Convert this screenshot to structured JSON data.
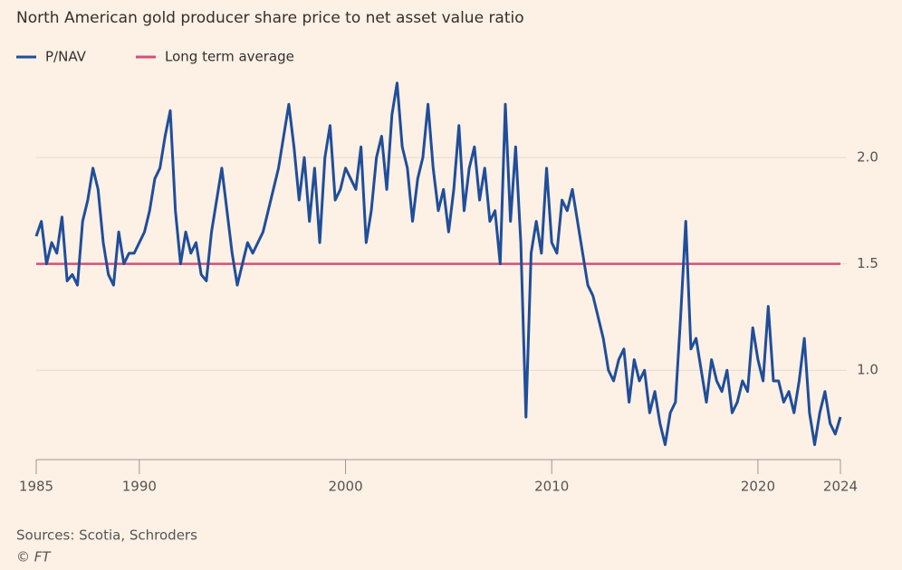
{
  "chart_data": {
    "type": "line",
    "title": "North American gold producer share price to net asset value ratio",
    "source": "Sources: Scotia, Schroders",
    "credit": "© FT",
    "x": [
      1985,
      1985.25,
      1985.5,
      1985.75,
      1986,
      1986.25,
      1986.5,
      1986.75,
      1987,
      1987.25,
      1987.5,
      1987.75,
      1988,
      1988.25,
      1988.5,
      1988.75,
      1989,
      1989.25,
      1989.5,
      1989.75,
      1990,
      1990.25,
      1990.5,
      1990.75,
      1991,
      1991.25,
      1991.5,
      1991.75,
      1992,
      1992.25,
      1992.5,
      1992.75,
      1993,
      1993.25,
      1993.5,
      1993.75,
      1994,
      1994.25,
      1994.5,
      1994.75,
      1995,
      1995.25,
      1995.5,
      1995.75,
      1996,
      1996.25,
      1996.5,
      1996.75,
      1997,
      1997.25,
      1997.5,
      1997.75,
      1998,
      1998.25,
      1998.5,
      1998.75,
      1999,
      1999.25,
      1999.5,
      1999.75,
      2000,
      2000.25,
      2000.5,
      2000.75,
      2001,
      2001.25,
      2001.5,
      2001.75,
      2002,
      2002.25,
      2002.5,
      2002.75,
      2003,
      2003.25,
      2003.5,
      2003.75,
      2004,
      2004.25,
      2004.5,
      2004.75,
      2005,
      2005.25,
      2005.5,
      2005.75,
      2006,
      2006.25,
      2006.5,
      2006.75,
      2007,
      2007.25,
      2007.5,
      2007.75,
      2008,
      2008.25,
      2008.5,
      2008.75,
      2009,
      2009.25,
      2009.5,
      2009.75,
      2010,
      2010.25,
      2010.5,
      2010.75,
      2011,
      2011.25,
      2011.5,
      2011.75,
      2012,
      2012.25,
      2012.5,
      2012.75,
      2013,
      2013.25,
      2013.5,
      2013.75,
      2014,
      2014.25,
      2014.5,
      2014.75,
      2015,
      2015.25,
      2015.5,
      2015.75,
      2016,
      2016.25,
      2016.5,
      2016.75,
      2017,
      2017.25,
      2017.5,
      2017.75,
      2018,
      2018.25,
      2018.5,
      2018.75,
      2019,
      2019.25,
      2019.5,
      2019.75,
      2020,
      2020.25,
      2020.5,
      2020.75,
      2021,
      2021.25,
      2021.5,
      2021.75,
      2022,
      2022.25,
      2022.5,
      2022.75,
      2023,
      2023.25,
      2023.5,
      2023.75,
      2024
    ],
    "series": [
      {
        "name": "P/NAV",
        "color": "#1f4e9a",
        "values": [
          1.63,
          1.7,
          1.5,
          1.6,
          1.55,
          1.72,
          1.42,
          1.45,
          1.4,
          1.7,
          1.8,
          1.95,
          1.85,
          1.6,
          1.45,
          1.4,
          1.65,
          1.5,
          1.55,
          1.55,
          1.6,
          1.65,
          1.75,
          1.9,
          1.95,
          2.1,
          2.22,
          1.75,
          1.5,
          1.65,
          1.55,
          1.6,
          1.45,
          1.42,
          1.65,
          1.8,
          1.95,
          1.75,
          1.55,
          1.4,
          1.5,
          1.6,
          1.55,
          1.6,
          1.65,
          1.75,
          1.85,
          1.95,
          2.1,
          2.25,
          2.05,
          1.8,
          2.0,
          1.7,
          1.95,
          1.6,
          2.0,
          2.15,
          1.8,
          1.85,
          1.95,
          1.9,
          1.85,
          2.05,
          1.6,
          1.75,
          2.0,
          2.1,
          1.85,
          2.2,
          2.35,
          2.05,
          1.95,
          1.7,
          1.9,
          2.0,
          2.25,
          1.95,
          1.75,
          1.85,
          1.65,
          1.85,
          2.15,
          1.75,
          1.95,
          2.05,
          1.8,
          1.95,
          1.7,
          1.75,
          1.5,
          2.25,
          1.7,
          2.05,
          1.6,
          0.78,
          1.55,
          1.7,
          1.55,
          1.95,
          1.6,
          1.55,
          1.8,
          1.75,
          1.85,
          1.7,
          1.55,
          1.4,
          1.35,
          1.25,
          1.15,
          1.0,
          0.95,
          1.05,
          1.1,
          0.85,
          1.05,
          0.95,
          1.0,
          0.8,
          0.9,
          0.75,
          0.65,
          0.8,
          0.85,
          1.25,
          1.7,
          1.1,
          1.15,
          1.0,
          0.85,
          1.05,
          0.95,
          0.9,
          1.0,
          0.8,
          0.85,
          0.95,
          0.9,
          1.2,
          1.05,
          0.95,
          1.3,
          0.95,
          0.95,
          0.85,
          0.9,
          0.8,
          0.95,
          1.15,
          0.8,
          0.65,
          0.8,
          0.9,
          0.75,
          0.7,
          0.78
        ]
      },
      {
        "name": "Long term average",
        "color": "#d0527a",
        "value": 1.5
      }
    ],
    "xlim": [
      1985,
      2024
    ],
    "xticks": [
      1985,
      1990,
      2000,
      2010,
      2020,
      2024
    ],
    "ylim": [
      0.58,
      2.4
    ],
    "yticks": [
      {
        "value": 1,
        "label": "1.0"
      },
      1.5,
      {
        "value": 2,
        "label": "2.0"
      }
    ],
    "grid": true
  }
}
